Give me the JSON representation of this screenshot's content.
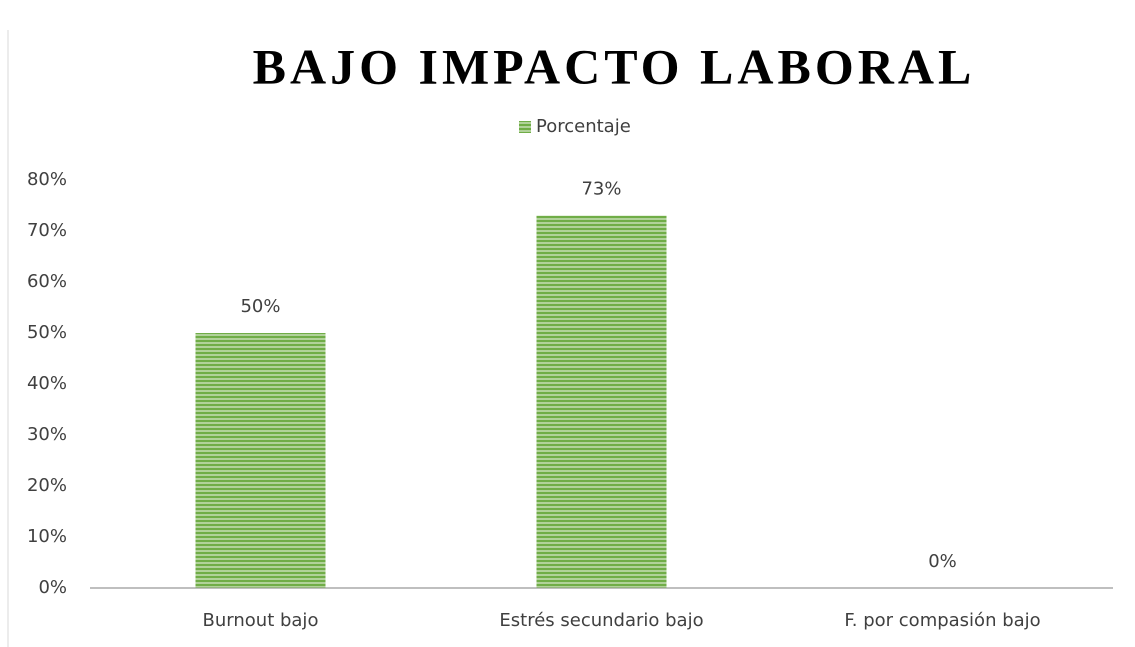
{
  "chart_data": {
    "type": "bar",
    "title": "BAJO IMPACTO LABORAL",
    "categories": [
      "Burnout bajo",
      "Estrés secundario bajo",
      "F. por compasión bajo"
    ],
    "series": [
      {
        "name": "Porcentaje",
        "color": "#70ad47",
        "values": [
          50,
          73,
          0
        ],
        "value_labels": [
          "50%",
          "73%",
          "0%"
        ]
      }
    ],
    "ylim": [
      0,
      80
    ],
    "yticks": [
      {
        "value": 0,
        "label": "0%"
      },
      {
        "value": 10,
        "label": "10%"
      },
      {
        "value": 20,
        "label": "20%"
      },
      {
        "value": 30,
        "label": "30%"
      },
      {
        "value": 40,
        "label": "40%"
      },
      {
        "value": 50,
        "label": "50%"
      },
      {
        "value": 60,
        "label": "60%"
      },
      {
        "value": 70,
        "label": "70%"
      },
      {
        "value": 80,
        "label": "80%"
      }
    ],
    "grid": false,
    "legend": "top"
  }
}
